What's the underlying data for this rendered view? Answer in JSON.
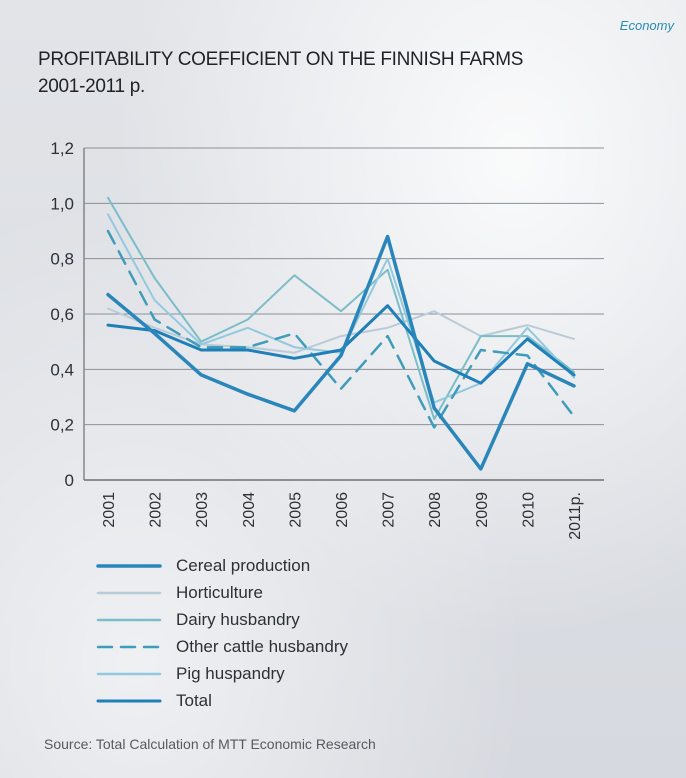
{
  "header": {
    "brand": "Economy"
  },
  "footer": {
    "source": "Source: Total Calculation of MTT Economic Research"
  },
  "chart_data": {
    "type": "line",
    "title": "PROFITABILITY COEFFICIENT ON THE FINNISH FARMS 2001-2011 p.",
    "xlabel": "",
    "ylabel": "",
    "categories": [
      "2001",
      "2002",
      "2003",
      "2004",
      "2005",
      "2006",
      "2007",
      "2008",
      "2009",
      "2010",
      "2011p."
    ],
    "yticks": [
      "0",
      "0,2",
      "0,4",
      "0,6",
      "0,8",
      "1,0",
      "1,2"
    ],
    "ylim": [
      0,
      1.2
    ],
    "grid": true,
    "legend_position": "bottom",
    "series": [
      {
        "name": "Cereal production",
        "values": [
          0.67,
          0.53,
          0.38,
          0.31,
          0.25,
          0.45,
          0.88,
          0.26,
          0.04,
          0.42,
          0.34
        ],
        "color": "#2a86ba",
        "dash": false,
        "width": 3.5
      },
      {
        "name": "Horticulture",
        "values": [
          0.62,
          0.55,
          0.49,
          0.48,
          0.46,
          0.52,
          0.55,
          0.61,
          0.52,
          0.56,
          0.51
        ],
        "color": "#b9cbd8",
        "dash": false,
        "width": 2
      },
      {
        "name": "Dairy husbandry",
        "values": [
          1.02,
          0.73,
          0.5,
          0.58,
          0.74,
          0.61,
          0.76,
          0.22,
          0.52,
          0.52,
          0.39
        ],
        "color": "#7bbdc8",
        "dash": false,
        "width": 2
      },
      {
        "name": "Other cattle husbandry",
        "values": [
          0.9,
          0.58,
          0.48,
          0.48,
          0.53,
          0.33,
          0.52,
          0.19,
          0.47,
          0.45,
          0.23
        ],
        "color": "#3f9cba",
        "dash": true,
        "width": 2.5
      },
      {
        "name": "Pig huspandry",
        "values": [
          0.96,
          0.65,
          0.49,
          0.55,
          0.48,
          0.46,
          0.8,
          0.28,
          0.35,
          0.55,
          0.37
        ],
        "color": "#92c9de",
        "dash": false,
        "width": 2
      },
      {
        "name": "Total",
        "values": [
          0.56,
          0.54,
          0.47,
          0.47,
          0.44,
          0.47,
          0.63,
          0.43,
          0.35,
          0.51,
          0.38
        ],
        "color": "#1f7fb8",
        "dash": false,
        "width": 3
      }
    ]
  }
}
